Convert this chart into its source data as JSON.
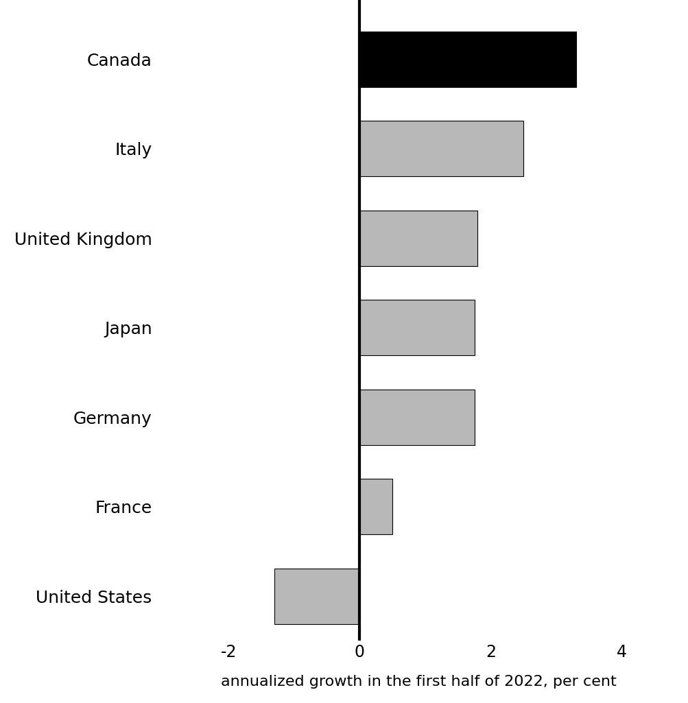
{
  "categories": [
    "Canada",
    "Italy",
    "United Kingdom",
    "Japan",
    "Germany",
    "France",
    "United States"
  ],
  "values": [
    3.3,
    2.5,
    1.8,
    1.75,
    1.75,
    0.5,
    -1.3
  ],
  "bar_colors": [
    "#000000",
    "#b8b8b8",
    "#b8b8b8",
    "#b8b8b8",
    "#b8b8b8",
    "#b8b8b8",
    "#b8b8b8"
  ],
  "bar_edgecolor": "#000000",
  "xlabel": "annualized growth in the first half of 2022, per cent",
  "xlim": [
    -3.0,
    4.8
  ],
  "xticks": [
    -2,
    0,
    2,
    4
  ],
  "background_color": "#ffffff",
  "bar_height": 0.62,
  "xlabel_fontsize": 16,
  "tick_fontsize": 17,
  "label_fontsize": 18,
  "vline_lw": 3.0
}
